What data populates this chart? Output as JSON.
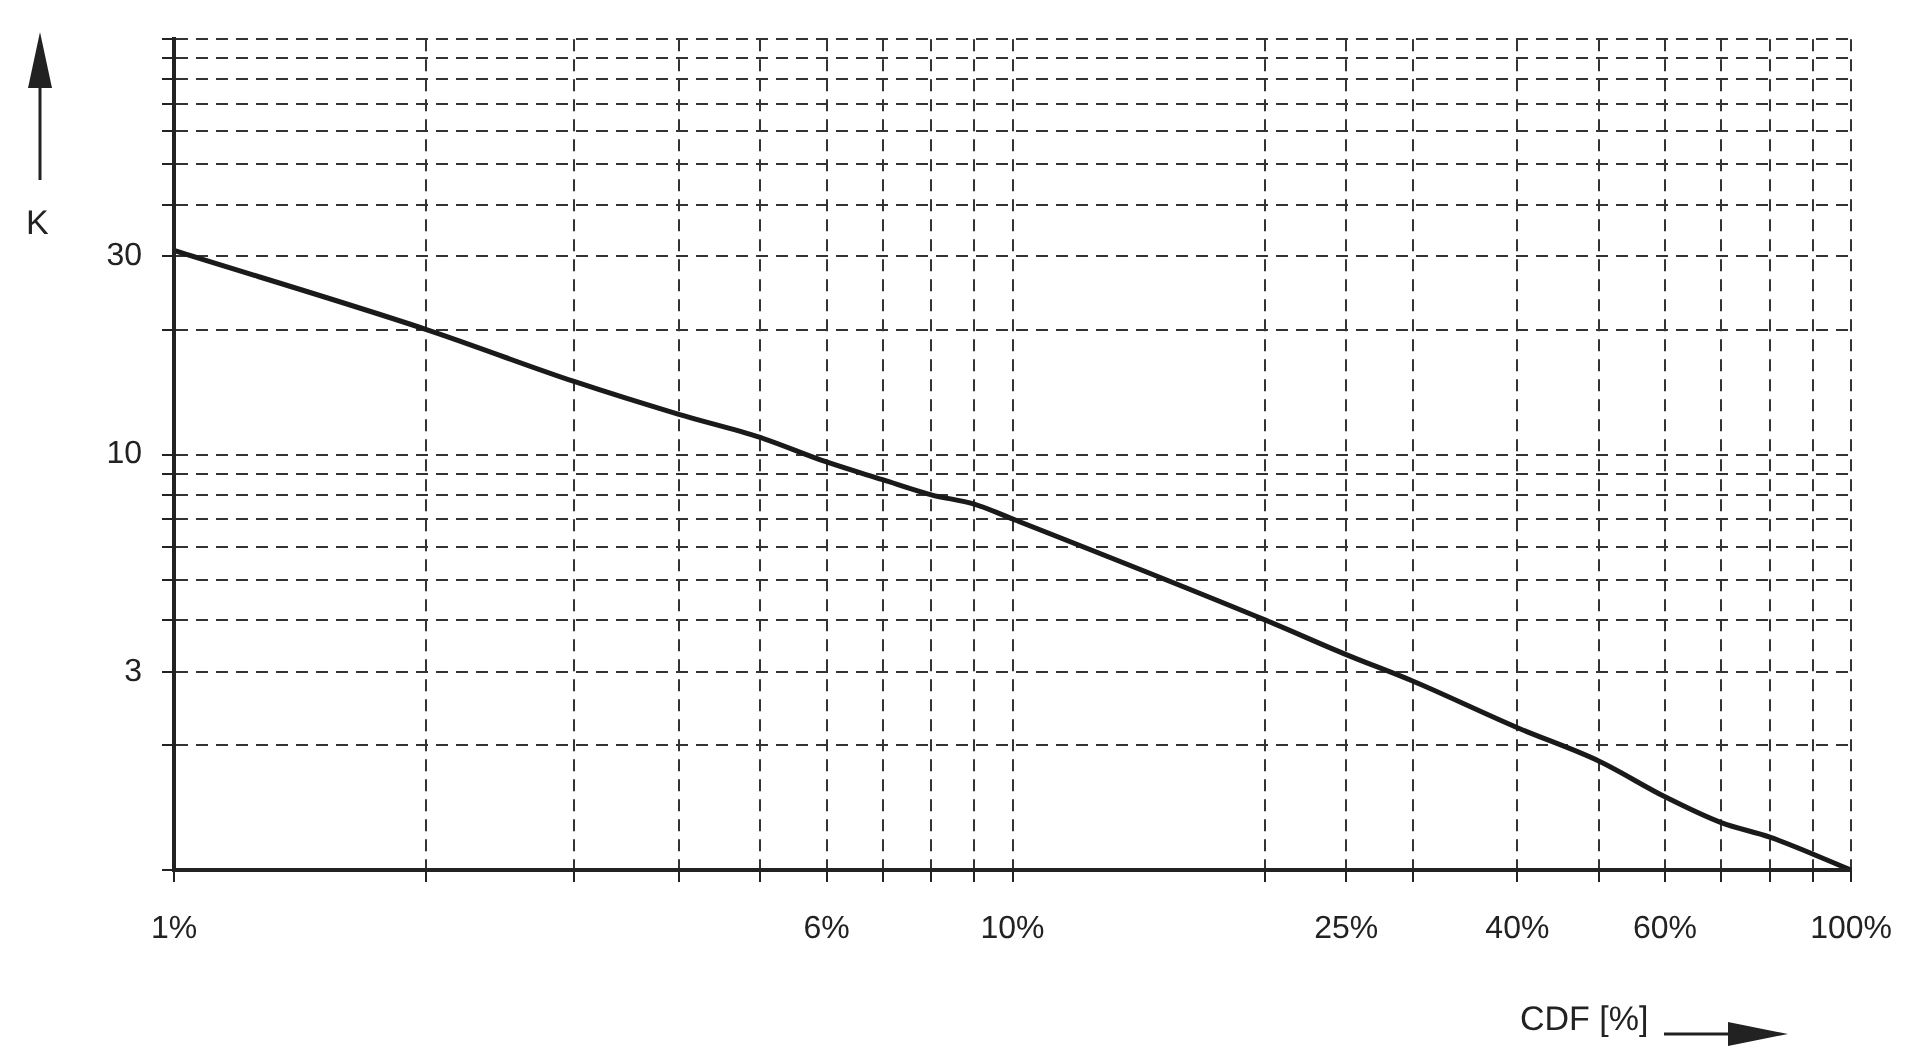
{
  "chart_data": {
    "type": "line",
    "xlabel": "CDF [%]",
    "ylabel": "K",
    "log": "xy",
    "grid": true,
    "legend": false,
    "marker": "none",
    "line_style": "solid",
    "xlim": [
      1,
      100
    ],
    "ylim": [
      1,
      100
    ],
    "xticks": [
      {
        "value": 1,
        "label": "1%"
      },
      {
        "value": 2,
        "label": null
      },
      {
        "value": 3,
        "label": null
      },
      {
        "value": 4,
        "label": null
      },
      {
        "value": 5,
        "label": null
      },
      {
        "value": 6,
        "label": "6%"
      },
      {
        "value": 7,
        "label": null
      },
      {
        "value": 8,
        "label": null
      },
      {
        "value": 9,
        "label": null
      },
      {
        "value": 10,
        "label": "10%"
      },
      {
        "value": 20,
        "label": null
      },
      {
        "value": 25,
        "label": "25%"
      },
      {
        "value": 30,
        "label": null
      },
      {
        "value": 40,
        "label": "40%"
      },
      {
        "value": 50,
        "label": null
      },
      {
        "value": 60,
        "label": "60%"
      },
      {
        "value": 70,
        "label": null
      },
      {
        "value": 80,
        "label": null
      },
      {
        "value": 90,
        "label": null
      },
      {
        "value": 100,
        "label": "100%"
      }
    ],
    "yticks": [
      {
        "value": 1,
        "label": null
      },
      {
        "value": 2,
        "label": null
      },
      3,
      {
        "value": 4,
        "label": null
      },
      {
        "value": 5,
        "label": null
      },
      {
        "value": 6,
        "label": null
      },
      {
        "value": 7,
        "label": null
      },
      {
        "value": 8,
        "label": null
      },
      {
        "value": 9,
        "label": null
      },
      10,
      {
        "value": 20,
        "label": null
      },
      30,
      {
        "value": 40,
        "label": null
      },
      {
        "value": 50,
        "label": null
      },
      {
        "value": 60,
        "label": null
      },
      {
        "value": 70,
        "label": null
      },
      {
        "value": 80,
        "label": null
      },
      {
        "value": 90,
        "label": null
      },
      {
        "value": 100,
        "label": null
      }
    ],
    "x": [
      1,
      2,
      3,
      4,
      5,
      6,
      7,
      8,
      9,
      10,
      20,
      25,
      30,
      40,
      50,
      60,
      70,
      80,
      100
    ],
    "series": [
      {
        "color": "#1a1a1a",
        "values": [
          31,
          20,
          15,
          12.5,
          11,
          9.6,
          8.7,
          8,
          7.6,
          7,
          4,
          3.3,
          2.85,
          2.2,
          1.83,
          1.5,
          1.3,
          1.2,
          1
        ]
      }
    ]
  }
}
